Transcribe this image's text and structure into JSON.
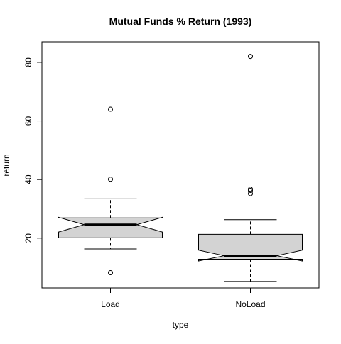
{
  "chart_data": {
    "type": "boxplot",
    "title": "Mutual Funds % Return (1993)",
    "xlabel": "type",
    "ylabel": "return",
    "categories": [
      "Load",
      "NoLoad"
    ],
    "ylim": [
      3,
      87
    ],
    "y_ticks": [
      20,
      40,
      60,
      80
    ],
    "notched": true,
    "box_fill": "#d3d3d3",
    "boxes": [
      {
        "name": "Load",
        "whisker_low": 16.3,
        "q1": 20.1,
        "median": 24.6,
        "q3": 26.9,
        "whisker_high": 33.4,
        "notch_low": 22.1,
        "notch_high": 27.1,
        "outliers": [
          8.2,
          40.1,
          64.0
        ]
      },
      {
        "name": "NoLoad",
        "whisker_low": 5.2,
        "q1": 12.8,
        "median": 14.0,
        "q3": 21.3,
        "whisker_high": 26.3,
        "notch_low": 12.2,
        "notch_high": 15.9,
        "outliers": [
          35.2,
          36.3,
          36.7,
          82.0
        ]
      }
    ]
  }
}
